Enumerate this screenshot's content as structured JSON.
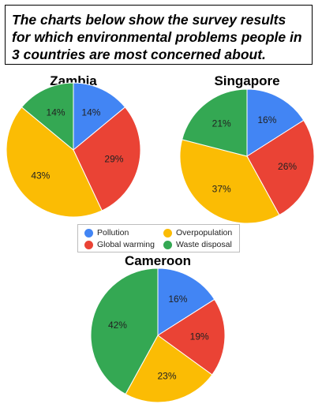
{
  "header": {
    "text": "The charts below show the survey results for which environmental problems people in 3 countries are most concerned about."
  },
  "colors": {
    "Pollution": "#4285F4",
    "Global warming": "#EA4335",
    "Overpopulation": "#FBBC04",
    "Waste disposal": "#34A853"
  },
  "legend": {
    "items": [
      "Pollution",
      "Global warming",
      "Overpopulation",
      "Waste disposal"
    ]
  },
  "chart_data": [
    {
      "type": "pie",
      "title": "Zambia",
      "categories": [
        "Pollution",
        "Global warming",
        "Overpopulation",
        "Waste disposal"
      ],
      "values": [
        14,
        29,
        43,
        14
      ],
      "labels": [
        "14%",
        "29%",
        "43%",
        "14%"
      ]
    },
    {
      "type": "pie",
      "title": "Singapore",
      "categories": [
        "Pollution",
        "Global warming",
        "Overpopulation",
        "Waste disposal"
      ],
      "values": [
        16,
        26,
        37,
        21
      ],
      "labels": [
        "16%",
        "26%",
        "37%",
        "21%"
      ]
    },
    {
      "type": "pie",
      "title": "Cameroon",
      "categories": [
        "Pollution",
        "Global warming",
        "Overpopulation",
        "Waste disposal"
      ],
      "values": [
        16,
        19,
        23,
        42
      ],
      "labels": [
        "16%",
        "19%",
        "23%",
        "42%"
      ]
    }
  ]
}
